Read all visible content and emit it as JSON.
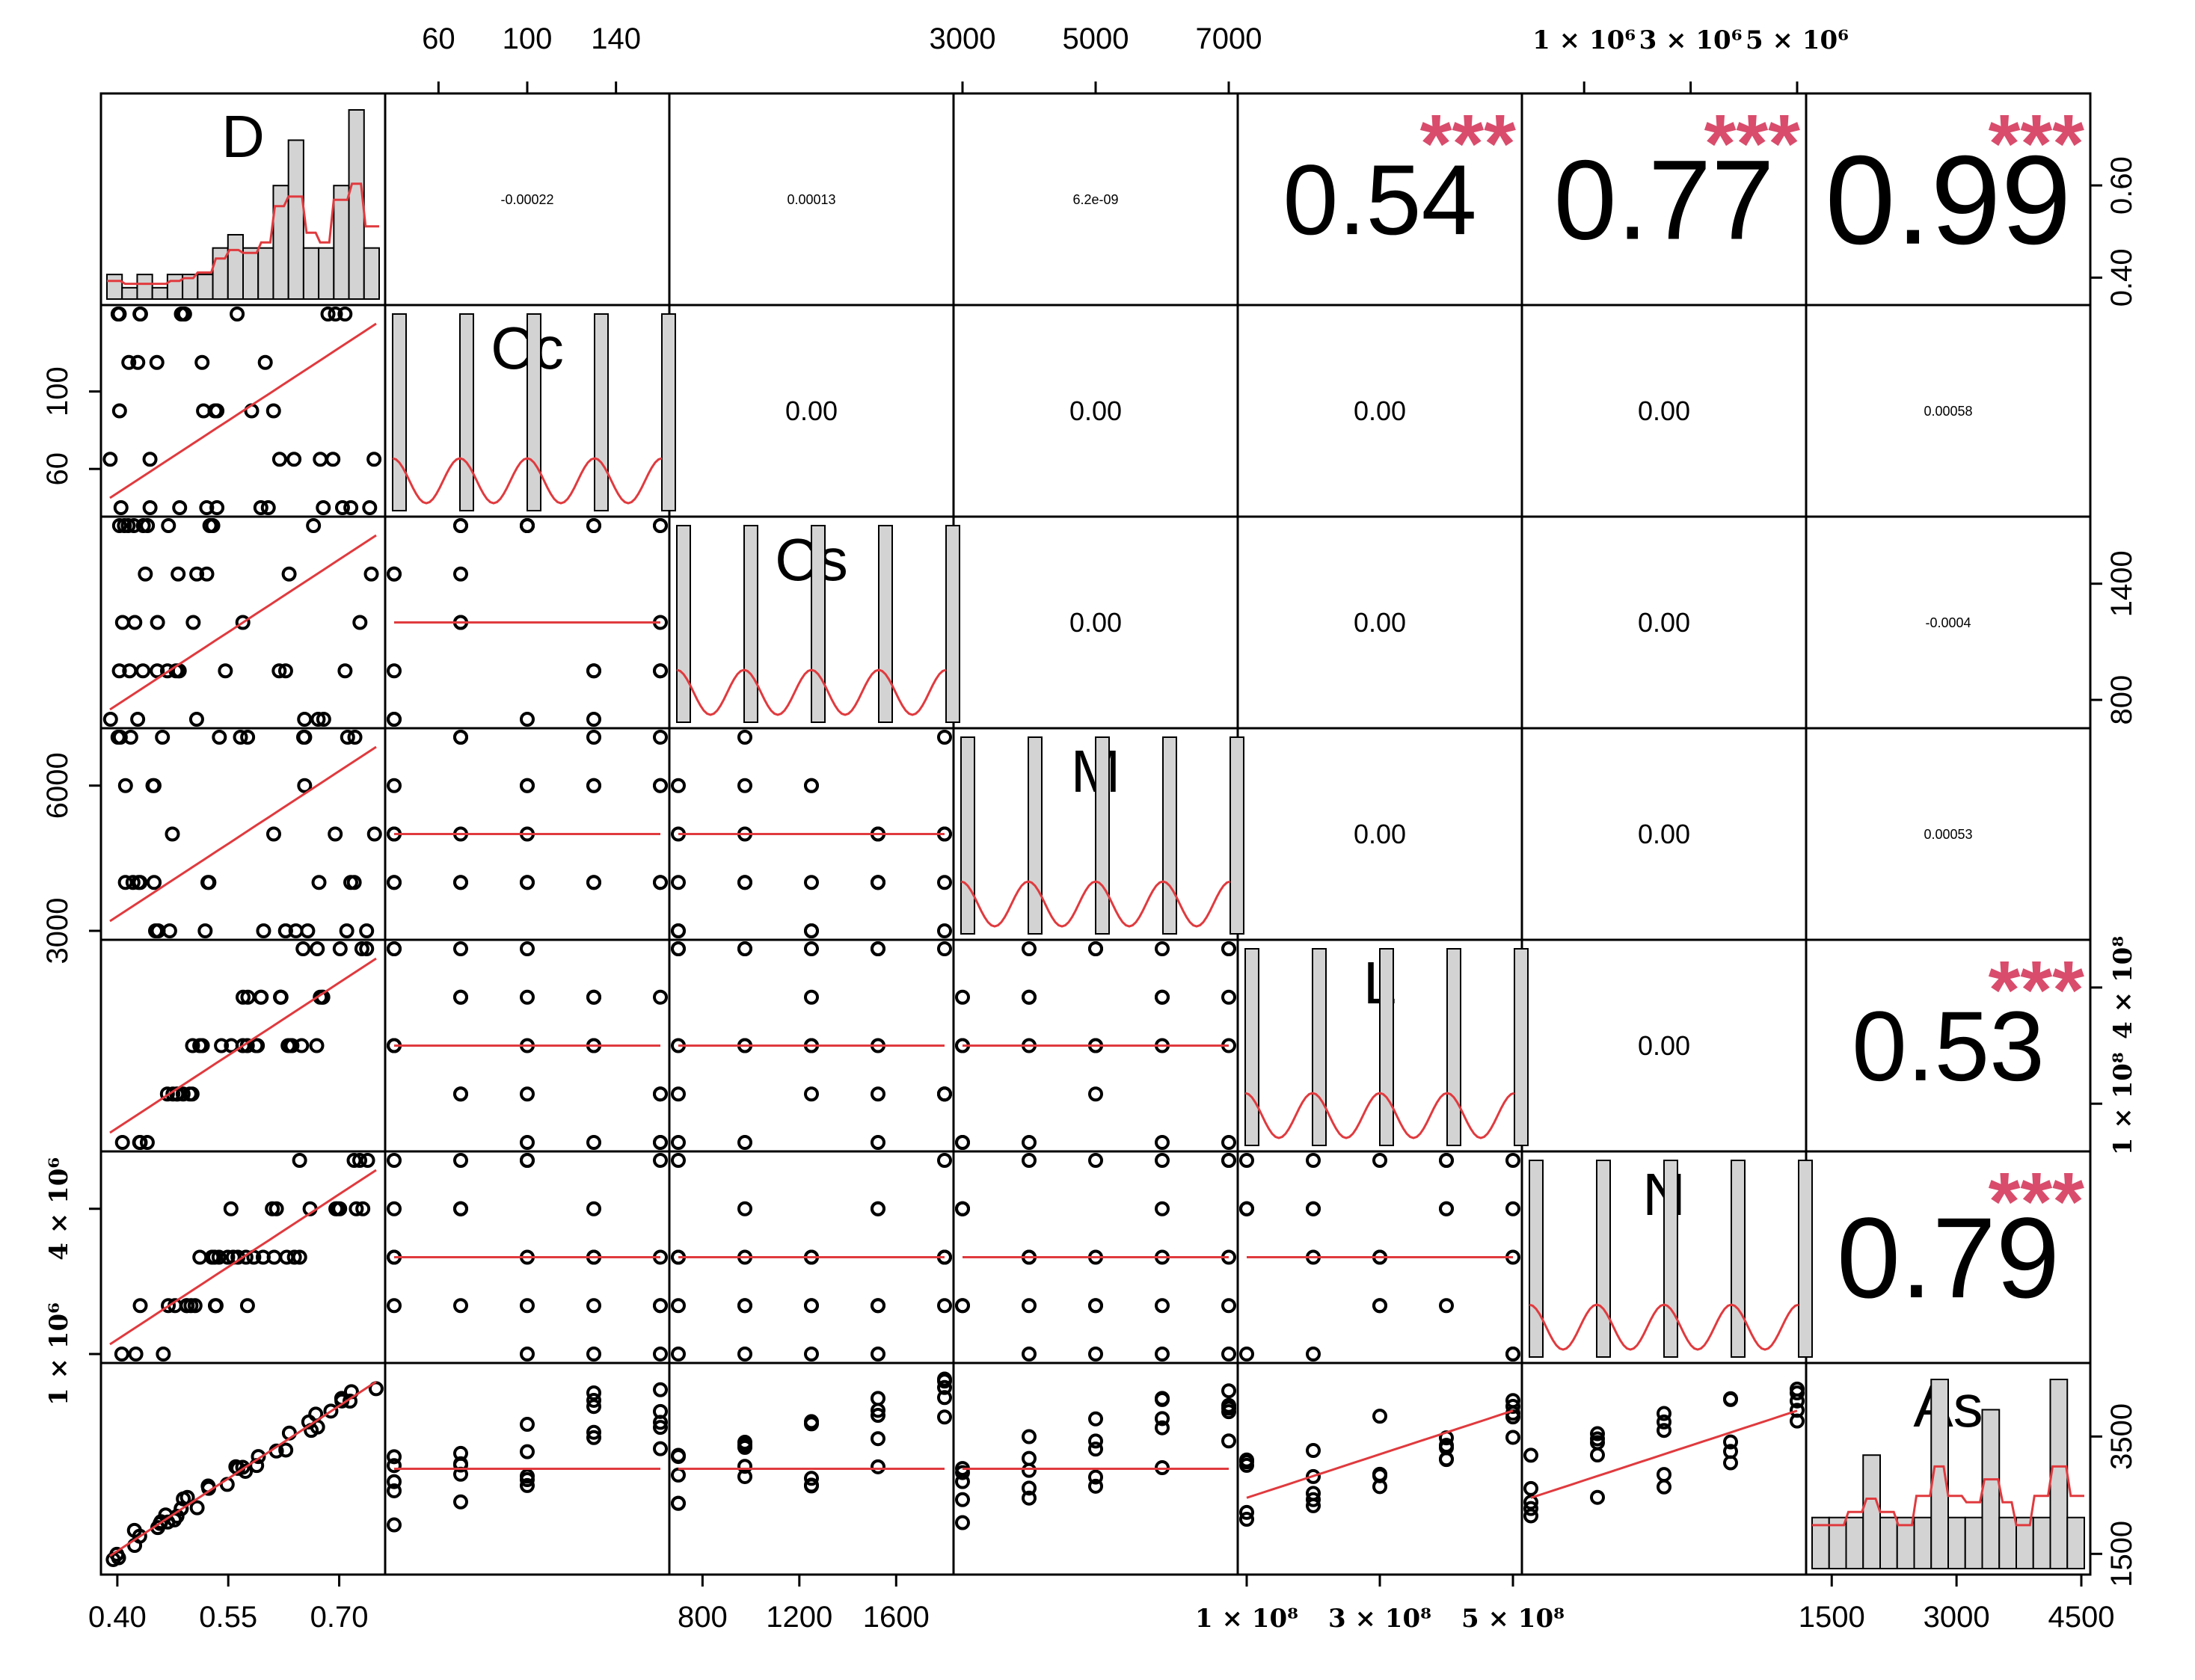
{
  "chart_data": {
    "type": "scatter",
    "variables": [
      "D",
      "Cc",
      "Cs",
      "M",
      "L",
      "N",
      "As"
    ],
    "ticks": {
      "top": [
        {
          "col": 1,
          "labels": [
            "60",
            "100",
            "140"
          ],
          "values": [
            60,
            100,
            140
          ],
          "range": [
            40,
            160
          ]
        },
        {
          "col": 3,
          "labels": [
            "3000",
            "5000",
            "7000"
          ],
          "values": [
            3000,
            5000,
            7000
          ],
          "range": [
            3000,
            7000
          ]
        },
        {
          "col": 5,
          "labels": [
            "1 × 10⁶",
            "3 × 10⁶",
            "5 × 10⁶"
          ],
          "values": [
            1000000,
            3000000,
            5000000
          ],
          "range": [
            0,
            5000000
          ]
        }
      ],
      "bottom": [
        {
          "col": 0,
          "labels": [
            "0.40",
            "0.55",
            "0.70"
          ],
          "values": [
            0.4,
            0.55,
            0.7
          ],
          "range": [
            0.39,
            0.75
          ]
        },
        {
          "col": 2,
          "labels": [
            "800",
            "1200",
            "1600"
          ],
          "values": [
            800,
            1200,
            1600
          ],
          "range": [
            700,
            1800
          ]
        },
        {
          "col": 4,
          "labels": [
            "1 × 10⁸",
            "3 × 10⁸",
            "5 × 10⁸"
          ],
          "values": [
            100000000,
            300000000,
            500000000
          ],
          "range": [
            100000000,
            500000000
          ]
        },
        {
          "col": 6,
          "labels": [
            "1500",
            "3000",
            "4500"
          ],
          "values": [
            1500,
            3000,
            4500
          ],
          "range": [
            1300,
            4500
          ]
        }
      ],
      "left": [
        {
          "row": 1,
          "labels": [
            "60",
            "100"
          ],
          "values": [
            60,
            100
          ],
          "range": [
            40,
            140
          ]
        },
        {
          "row": 3,
          "labels": [
            "3000",
            "6000"
          ],
          "values": [
            3000,
            6000
          ],
          "range": [
            3000,
            7000
          ]
        },
        {
          "row": 5,
          "labels": [
            "1 × 10⁶",
            "4 × 10⁶"
          ],
          "values": [
            1000000,
            4000000
          ],
          "range": [
            1000000,
            5000000
          ]
        }
      ],
      "right": [
        {
          "row": 0,
          "labels": [
            "0.40",
            "0.60"
          ],
          "values": [
            0.4,
            0.6
          ],
          "range": [
            0.36,
            0.78
          ]
        },
        {
          "row": 2,
          "labels": [
            "800",
            "1400"
          ],
          "values": [
            800,
            1400
          ],
          "range": [
            700,
            1700
          ]
        },
        {
          "row": 4,
          "labels": [
            "1 × 10⁸",
            "4 × 10⁸"
          ],
          "values": [
            100000000,
            400000000
          ],
          "range": [
            0,
            500000000
          ]
        },
        {
          "row": 6,
          "labels": [
            "1500",
            "3500"
          ],
          "values": [
            1500,
            3500
          ],
          "range": [
            1300,
            4600
          ]
        }
      ]
    },
    "correlations": [
      {
        "row": 0,
        "col": 1,
        "text": "-0.00022",
        "stars": ""
      },
      {
        "row": 0,
        "col": 2,
        "text": "0.00013",
        "stars": ""
      },
      {
        "row": 0,
        "col": 3,
        "text": "6.2e-09",
        "stars": ""
      },
      {
        "row": 0,
        "col": 4,
        "text": "0.54",
        "stars": "***"
      },
      {
        "row": 0,
        "col": 5,
        "text": "0.77",
        "stars": "***"
      },
      {
        "row": 0,
        "col": 6,
        "text": "0.99",
        "stars": "***"
      },
      {
        "row": 1,
        "col": 2,
        "text": "0.00",
        "stars": ""
      },
      {
        "row": 1,
        "col": 3,
        "text": "0.00",
        "stars": ""
      },
      {
        "row": 1,
        "col": 4,
        "text": "0.00",
        "stars": ""
      },
      {
        "row": 1,
        "col": 5,
        "text": "0.00",
        "stars": ""
      },
      {
        "row": 1,
        "col": 6,
        "text": "0.00058",
        "stars": ""
      },
      {
        "row": 2,
        "col": 3,
        "text": "0.00",
        "stars": ""
      },
      {
        "row": 2,
        "col": 4,
        "text": "0.00",
        "stars": ""
      },
      {
        "row": 2,
        "col": 5,
        "text": "0.00",
        "stars": ""
      },
      {
        "row": 2,
        "col": 6,
        "text": "-0.0004",
        "stars": ""
      },
      {
        "row": 3,
        "col": 4,
        "text": "0.00",
        "stars": ""
      },
      {
        "row": 3,
        "col": 5,
        "text": "0.00",
        "stars": ""
      },
      {
        "row": 3,
        "col": 6,
        "text": "0.00053",
        "stars": ""
      },
      {
        "row": 4,
        "col": 5,
        "text": "0.00",
        "stars": ""
      },
      {
        "row": 4,
        "col": 6,
        "text": "0.53",
        "stars": "***"
      },
      {
        "row": 5,
        "col": 6,
        "text": "0.79",
        "stars": "***"
      }
    ],
    "histograms": {
      "D": [
        0.13,
        0.06,
        0.13,
        0.06,
        0.13,
        0.13,
        0.13,
        0.27,
        0.34,
        0.27,
        0.27,
        0.6,
        0.84,
        0.27,
        0.27,
        0.6,
        1.0,
        0.27
      ],
      "As": [
        0.27,
        0.27,
        0.27,
        0.6,
        0.27,
        0.27,
        0.27,
        1.0,
        0.27,
        0.27,
        0.84,
        0.27,
        0.27,
        0.27,
        1.0,
        0.27
      ]
    },
    "levels": {
      "Cc": [
        60,
        80,
        100,
        120,
        140
      ],
      "Cs": [
        800,
        1000,
        1200,
        1400,
        1600
      ],
      "M": [
        3000,
        4000,
        5000,
        6000,
        7000
      ],
      "L": [
        100000000,
        200000000,
        300000000,
        400000000,
        500000000
      ],
      "N": [
        1000000,
        2000000,
        3000000,
        4000000,
        5000000
      ]
    },
    "grid": false,
    "smoother_color": "#e03a3e",
    "star_color": "#d94c6c",
    "hist_fill": "#d3d3d3"
  }
}
